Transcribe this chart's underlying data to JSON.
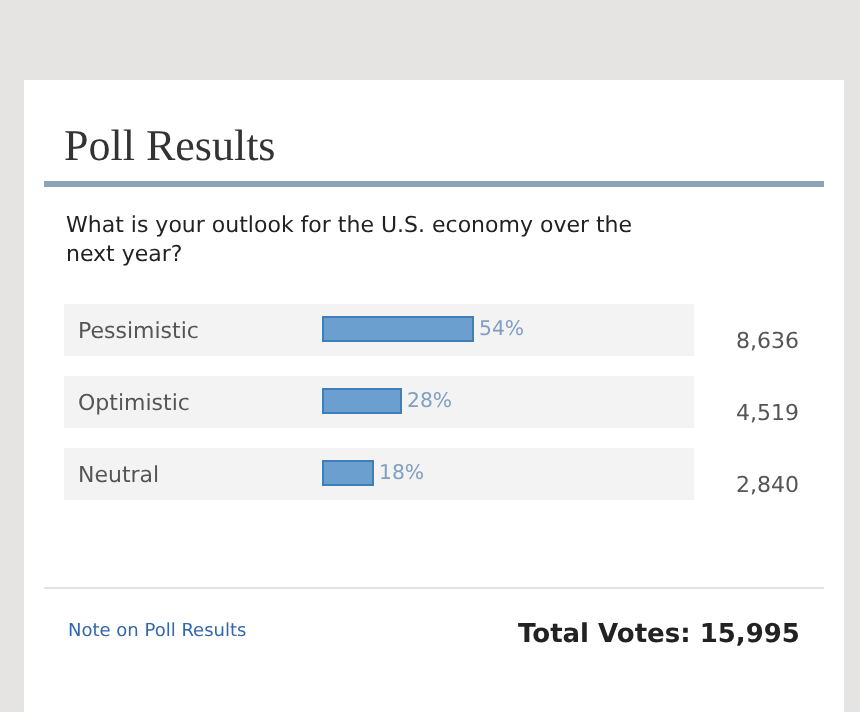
{
  "chart_data": {
    "type": "bar",
    "orientation": "horizontal",
    "title": "Poll Results",
    "subtitle": "What is your outlook for the U.S. economy over the next year?",
    "categories": [
      "Pessimistic",
      "Optimistic",
      "Neutral"
    ],
    "values": [
      54,
      28,
      18
    ],
    "value_labels": [
      "54%",
      "28%",
      "18%"
    ],
    "color": "#6a9fd0",
    "annotations": [
      "8,636",
      "4,519",
      "2,840",
      "Note on Poll Results",
      "Total Votes: 15,995"
    ],
    "grid": "y",
    "legend": false,
    "tick_labels": false
  }
}
